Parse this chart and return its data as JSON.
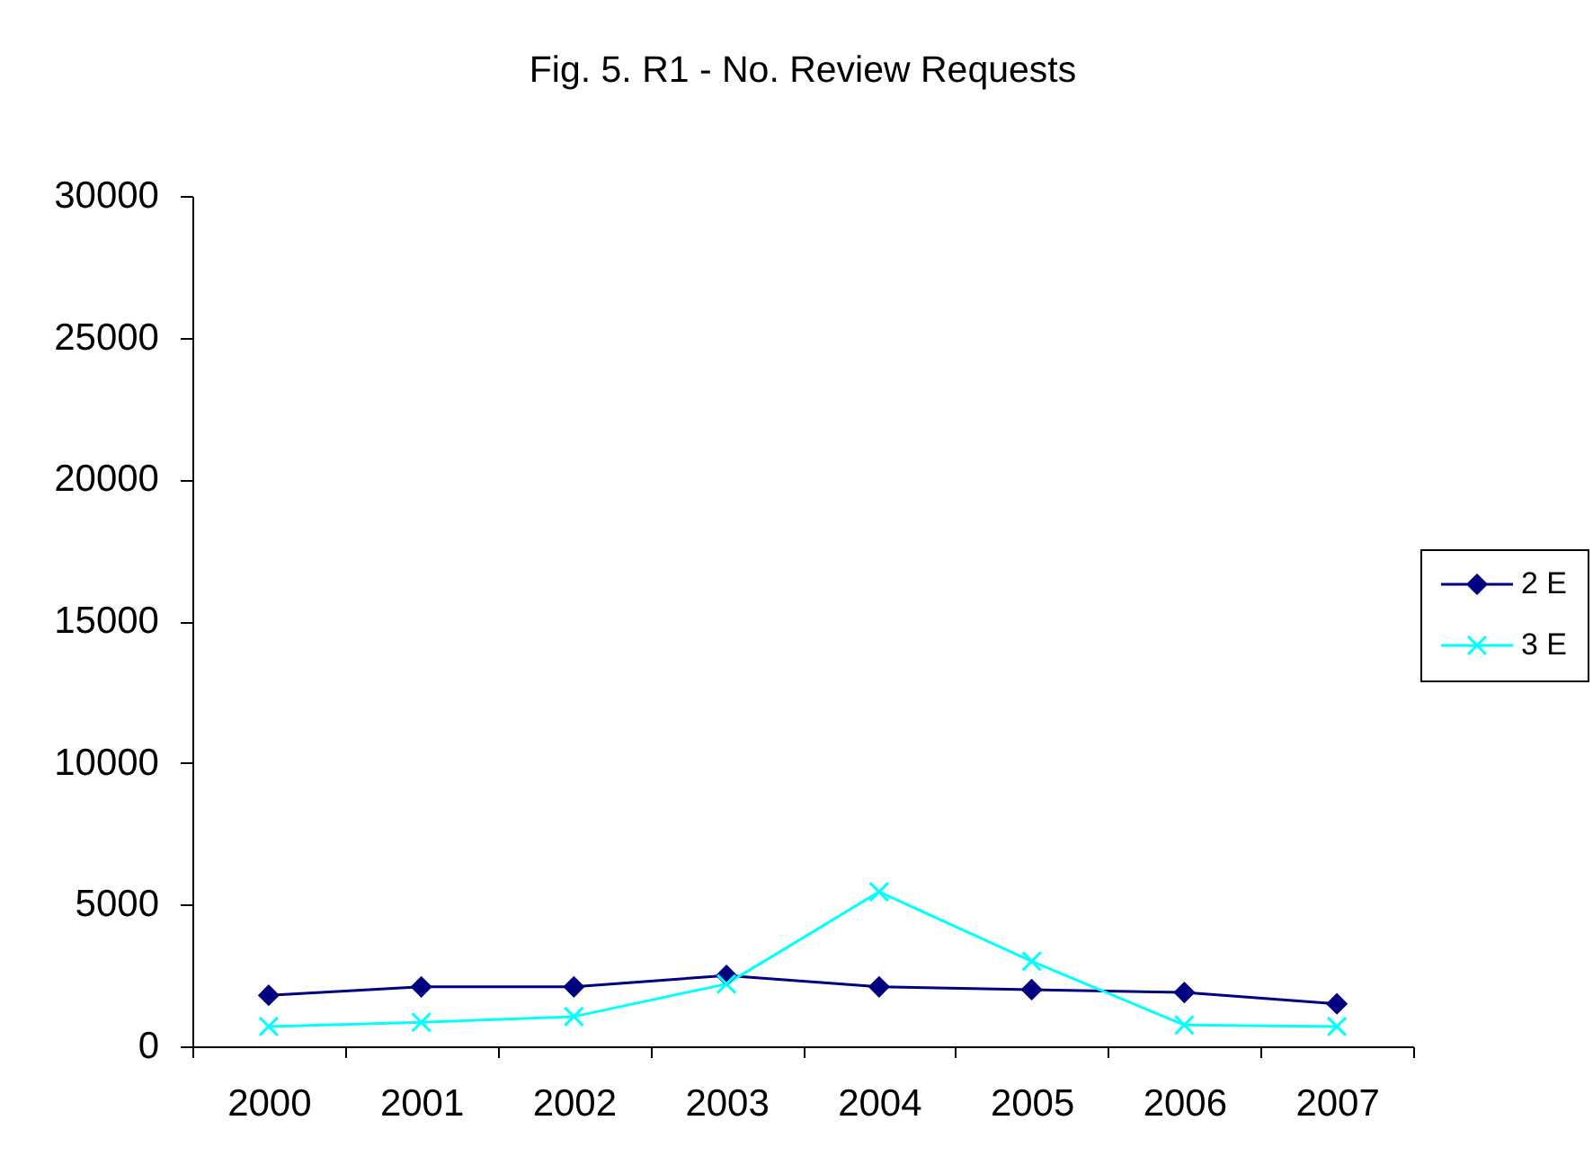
{
  "chart_data": {
    "type": "line",
    "title": "Fig. 5.  R1 - No. Review Requests",
    "categories": [
      "2000",
      "2001",
      "2002",
      "2003",
      "2004",
      "2005",
      "2006",
      "2007"
    ],
    "series": [
      {
        "name": "2 E",
        "color": "#000080",
        "marker": "diamond",
        "values": [
          1800,
          2100,
          2100,
          2500,
          2100,
          2000,
          1900,
          1500
        ]
      },
      {
        "name": "3 E",
        "color": "#00ffff",
        "marker": "cross",
        "values": [
          700,
          850,
          1050,
          2200,
          5450,
          3000,
          750,
          700
        ]
      }
    ],
    "ylim": [
      0,
      30000
    ],
    "yticks": [
      0,
      5000,
      10000,
      15000,
      20000,
      25000,
      30000
    ],
    "legend": "right"
  }
}
